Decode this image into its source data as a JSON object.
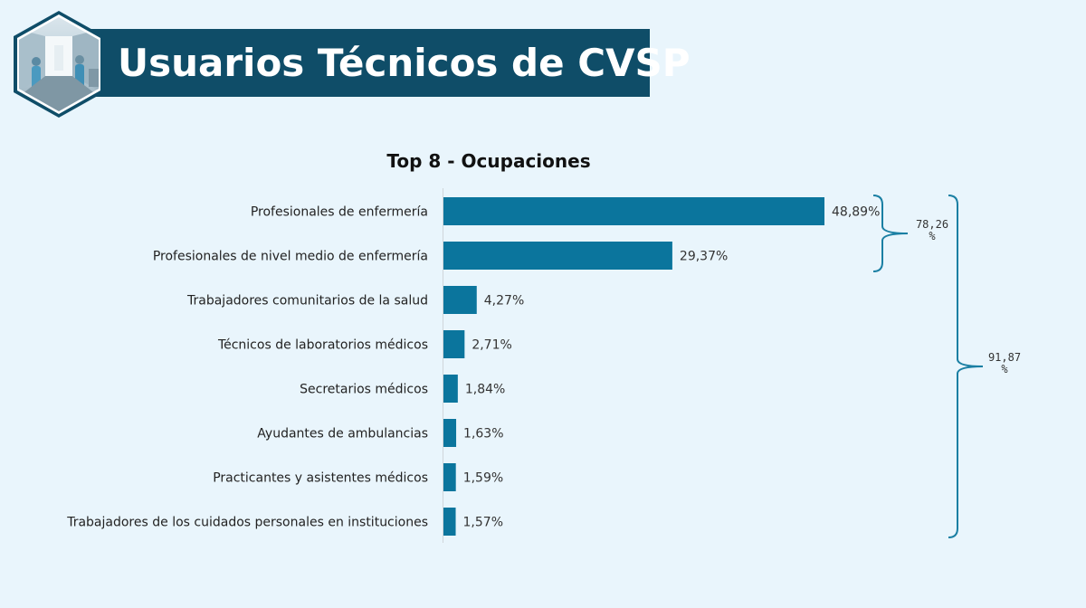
{
  "header": {
    "title": "Usuarios Técnicos de CVSP",
    "image": "hospital-corridor-photo"
  },
  "colors": {
    "background": "#e9f5fc",
    "title_bar": "#0f4d68",
    "bar": "#0b759d",
    "brace": "#1a7fa3"
  },
  "chart_data": {
    "type": "bar",
    "orientation": "horizontal",
    "title": "Top 8 - Ocupaciones",
    "categories": [
      "Profesionales de enfermería",
      "Profesionales de nivel medio de enfermería",
      "Trabajadores comunitarios de la salud",
      "Técnicos de laboratorios médicos",
      "Secretarios médicos",
      "Ayudantes de ambulancias",
      "Practicantes y asistentes médicos",
      "Trabajadores de los cuidados personales en instituciones"
    ],
    "values": [
      48.89,
      29.37,
      4.27,
      2.71,
      1.84,
      1.63,
      1.59,
      1.57
    ],
    "value_labels": [
      "48,89%",
      "29,37%",
      "4,27%",
      "2,71%",
      "1,84%",
      "1,63%",
      "1,59%",
      "1,57%"
    ],
    "xlim": [
      0,
      48.89
    ],
    "grid": false,
    "legend": "none",
    "annotations": [
      {
        "label_lines": [
          "78,26",
          "%"
        ],
        "spans": [
          0,
          1
        ]
      },
      {
        "label_lines": [
          "91,87",
          "%"
        ],
        "spans": [
          0,
          7
        ]
      }
    ]
  }
}
